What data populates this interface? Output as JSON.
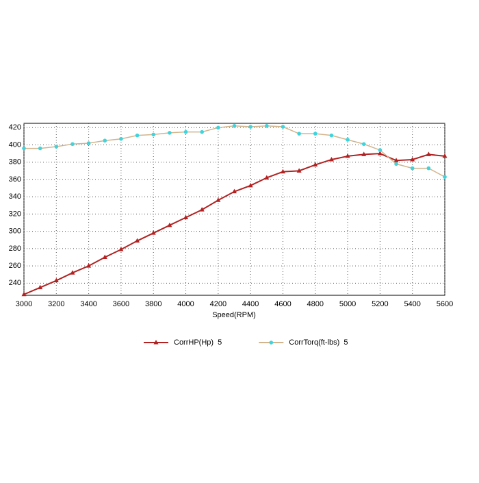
{
  "chart_data": {
    "type": "line",
    "x_label": "Speed(RPM)",
    "x": [
      3000,
      3100,
      3200,
      3300,
      3400,
      3500,
      3600,
      3700,
      3800,
      3900,
      4000,
      4100,
      4200,
      4300,
      4400,
      4500,
      4600,
      4700,
      4800,
      4900,
      5000,
      5100,
      5200,
      5300,
      5400,
      5500,
      5600
    ],
    "xlim": [
      3000,
      5600
    ],
    "xticks": [
      3000,
      3200,
      3400,
      3600,
      3800,
      4000,
      4200,
      4400,
      4600,
      4800,
      5000,
      5200,
      5400,
      5600
    ],
    "ylim": [
      226,
      425
    ],
    "yticks": [
      240,
      260,
      280,
      300,
      320,
      340,
      360,
      380,
      400,
      420
    ],
    "grid": true,
    "legend": "bottom",
    "series": [
      {
        "name": "CorrHP(Hp)  5",
        "color": "#b22222",
        "marker": "triangle",
        "marker_color": "#b22222",
        "values": [
          227,
          235,
          243,
          252,
          260,
          270,
          279,
          289,
          298,
          307,
          316,
          325,
          336,
          346,
          353,
          362,
          369,
          370,
          377,
          383,
          387,
          389,
          390,
          382,
          383,
          389,
          387
        ]
      },
      {
        "name": "CorrTorq(ft-lbs)  5",
        "color": "#d2b48c",
        "marker": "star",
        "marker_color": "#3fd4dc",
        "values": [
          396,
          396,
          398,
          401,
          402,
          405,
          407,
          411,
          412,
          414,
          415,
          415,
          420,
          422,
          421,
          422,
          421,
          413,
          413,
          411,
          406,
          401,
          394,
          378,
          373,
          373,
          363
        ]
      }
    ]
  }
}
